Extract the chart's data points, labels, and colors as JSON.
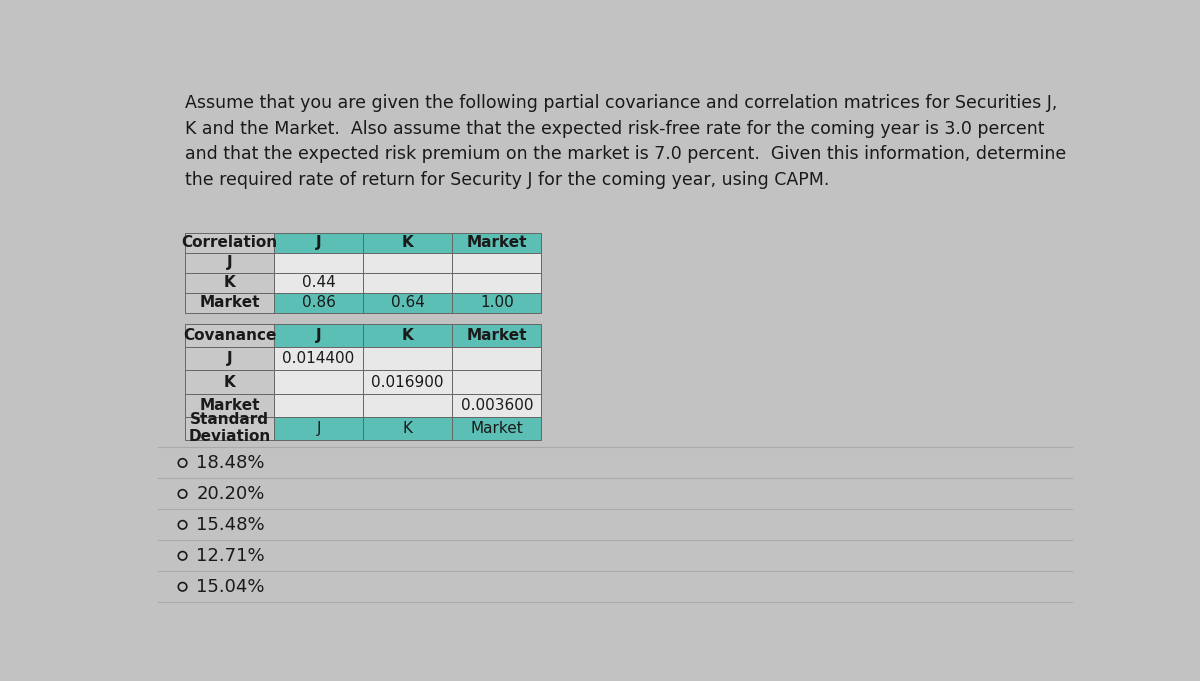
{
  "background_color": "#c2c2c2",
  "question_text": "Assume that you are given the following partial covariance and correlation matrices for Securities J,\nK and the Market.  Also assume that the expected risk-free rate for the coming year is 3.0 percent\nand that the expected risk premium on the market is 7.0 percent.  Given this information, determine\nthe required rate of return for Security J for the coming year, using CAPM.",
  "corr_table": {
    "headers": [
      "Correlation",
      "J",
      "K",
      "Market"
    ],
    "rows": [
      [
        "J",
        "",
        "",
        ""
      ],
      [
        "K",
        "0.44",
        "",
        ""
      ],
      [
        "Market",
        "0.86",
        "0.64",
        "1.00"
      ]
    ]
  },
  "cov_table": {
    "headers": [
      "Covanance",
      "J",
      "K",
      "Market"
    ],
    "rows": [
      [
        "J",
        "0.014400",
        "",
        ""
      ],
      [
        "K",
        "",
        "0.016900",
        ""
      ],
      [
        "Market",
        "",
        "",
        "0.003600"
      ],
      [
        "Standard\nDeviation",
        "J",
        "K",
        "Market"
      ]
    ]
  },
  "options": [
    "18.48%",
    "20.20%",
    "15.48%",
    "12.71%",
    "15.04%"
  ],
  "text_color": "#1a1a1a",
  "table_border_color": "#666666",
  "teal_header_bg": "#5bbfb5",
  "gray_header_bg": "#c8c8c8",
  "white_cell_bg": "#e8e8e8",
  "teal_cell_bg": "#a8d8d0",
  "font_size_question": 12.5,
  "font_size_table": 11,
  "font_size_options": 13
}
